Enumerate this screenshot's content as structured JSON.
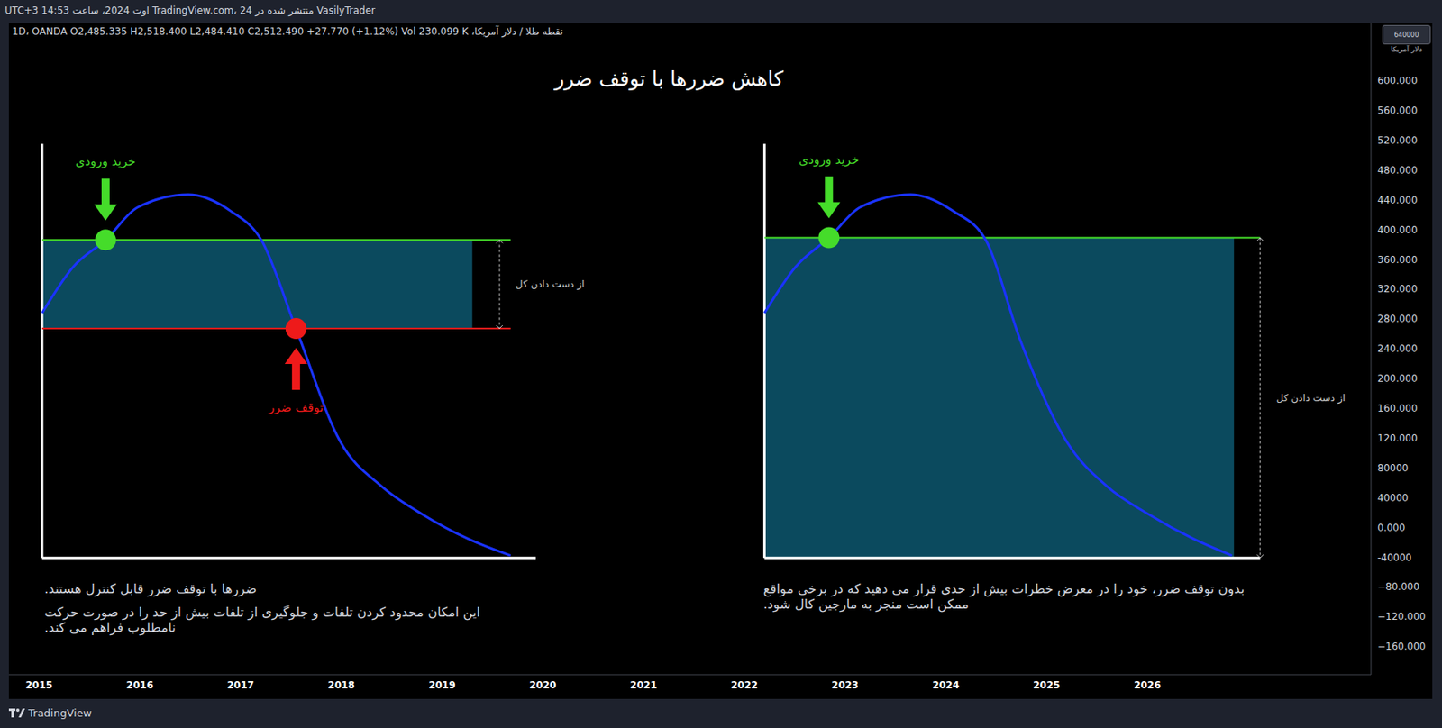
{
  "publisher": "VasilyTrader منتشر شده در TradingView.com، 24 اوت 2024، ساعت 14:53 UTC+3",
  "footer": "TradingView",
  "chart_data": {
    "type": "line",
    "title": "کاهش ضررها با توقف ضرر",
    "symbol_info": "نقطه طلا / دلار آمریکا، 1D، OANDA O2,485.335 H2,518.400 L2,484.410 C2,512.490 +27.770 (+1.12%) Vol 230.099 K",
    "price_tag": "640000",
    "currency_label": "دلار آمریکا",
    "grid": false,
    "xlim": [
      2014.7,
      2028.22
    ],
    "xticks": [
      2015,
      2016,
      2017,
      2018,
      2019,
      2020,
      2021,
      2022,
      2023,
      2024,
      2025,
      2026
    ],
    "ylim": [
      -198,
      678
    ],
    "yticks": [
      {
        "value": 600,
        "label": "600.000"
      },
      {
        "value": 560,
        "label": "560.000"
      },
      {
        "value": 520,
        "label": "520.000"
      },
      {
        "value": 480,
        "label": "480.000"
      },
      {
        "value": 440,
        "label": "440.000"
      },
      {
        "value": 400,
        "label": "400.000"
      },
      {
        "value": 360,
        "label": "360.000"
      },
      {
        "value": 320,
        "label": "320.000"
      },
      {
        "value": 280,
        "label": "280.000"
      },
      {
        "value": 240,
        "label": "240.000"
      },
      {
        "value": 200,
        "label": "200.000"
      },
      {
        "value": 160,
        "label": "160.000"
      },
      {
        "value": 120,
        "label": "120.000"
      },
      {
        "value": 80,
        "label": "80000"
      },
      {
        "value": 40,
        "label": "40000"
      },
      {
        "value": 0,
        "label": "0.000"
      },
      {
        "value": -40,
        "label": "-40000"
      },
      {
        "value": -80,
        "label": "−80.000"
      },
      {
        "value": -120,
        "label": "−120.000"
      },
      {
        "value": -160,
        "label": "−160.000"
      }
    ],
    "panels": [
      {
        "x": [
          2015.03,
          2015.34,
          2015.66,
          2015.98,
          2016.48,
          2016.9,
          2017.21,
          2017.55,
          2017.99,
          2018.4,
          2018.81,
          2019.25,
          2019.68
        ],
        "values": [
          288,
          350,
          386,
          430,
          447,
          425,
          385,
          267,
          115,
          55,
          17,
          -15,
          -38
        ],
        "color": "#1a33ff",
        "frame": {
          "x": [
            2015.03,
            2019.93
          ],
          "y": [
            -41,
            515
          ]
        },
        "entry": {
          "label": "خرید ورودی",
          "x": 2015.66,
          "value": 386,
          "color": "#45dc2a",
          "line_x": [
            2015.03,
            2019.68
          ]
        },
        "stop": {
          "label": "توقف ضرر",
          "x": 2017.55,
          "value": 267,
          "color": "#ee1a1a",
          "line_x": [
            2015.03,
            2019.68
          ]
        },
        "loss": {
          "label": "از دست دادن کل",
          "x": [
            2015.03,
            2019.3
          ],
          "y": [
            267,
            386
          ],
          "color": "#0b4a5e",
          "marker_x": 2019.57
        },
        "notes": [
          "ضررها با توقف ضرر قابل کنترل هستند.",
          "این امکان محدود کردن تلفات و جلوگیری از تلفات بیش از حد را در صورت حرکت نامطلوب فراهم می کند."
        ]
      },
      {
        "x": [
          2022.2,
          2022.51,
          2022.84,
          2023.15,
          2023.65,
          2024.07,
          2024.4,
          2024.74,
          2025.2,
          2025.6,
          2026.02,
          2026.45,
          2026.84
        ],
        "values": [
          288,
          350,
          389,
          430,
          447,
          425,
          385,
          251,
          115,
          55,
          17,
          -15,
          -38
        ],
        "color": "#1a33ff",
        "frame": {
          "x": [
            2022.2,
            2027.12
          ],
          "y": [
            -41,
            515
          ]
        },
        "entry": {
          "label": "خرید ورودی",
          "x": 2022.84,
          "value": 389,
          "color": "#45dc2a",
          "line_x": [
            2022.2,
            2027.12
          ]
        },
        "loss": {
          "label": "از دست دادن کل",
          "x": [
            2022.2,
            2026.86
          ],
          "y": [
            -41,
            389
          ],
          "color": "#0b4a5e",
          "marker_x": 2027.12
        },
        "notes": [
          "بدون توقف ضرر، خود را در معرض خطرات بیش از حدی قرار می دهید که در برخی مواقع ممکن است منجر به مارجین کال شود."
        ]
      }
    ]
  }
}
